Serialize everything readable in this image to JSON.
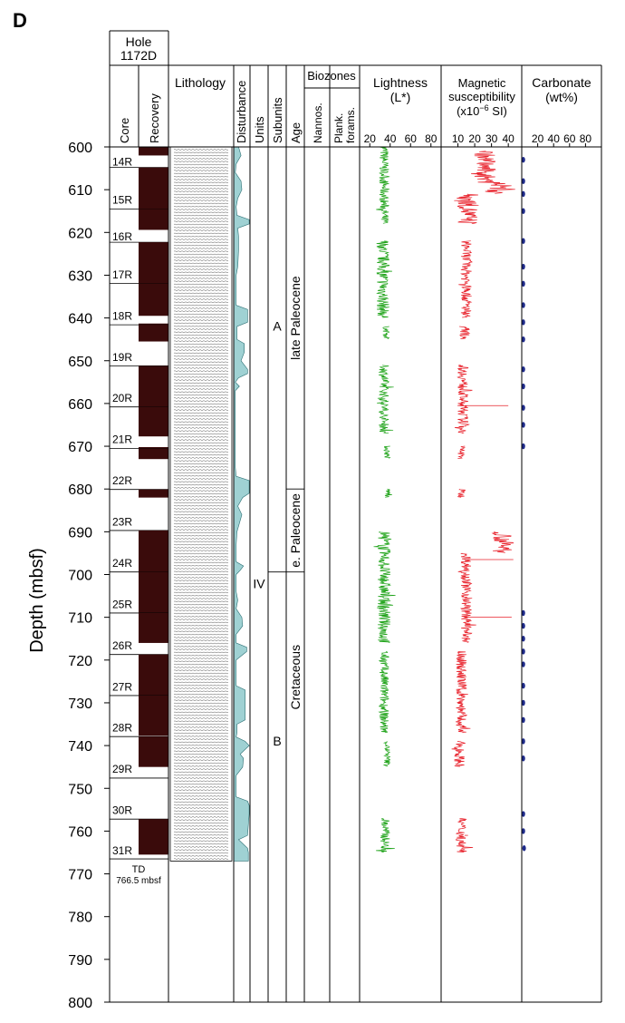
{
  "chart_data": {
    "type": "line",
    "panel_letter": "D",
    "hole_title": [
      "Hole",
      "1172D"
    ],
    "y_axis": {
      "label": "Depth (mbsf)",
      "range": [
        600,
        800
      ],
      "ticks": [
        600,
        610,
        620,
        630,
        640,
        650,
        660,
        670,
        680,
        690,
        700,
        710,
        720,
        730,
        740,
        750,
        760,
        770,
        780,
        790,
        800
      ],
      "reversed": true
    },
    "column_headers": {
      "core": "Core",
      "recovery": "Recovery",
      "lithology": "Lithology",
      "disturbance": "Disturbance",
      "units": "Units",
      "subunits": "Subunits",
      "age": "Age",
      "biozones": "Biozones",
      "nannos": "Nannos.",
      "plank": [
        "Plank.",
        "forams."
      ]
    },
    "cores": [
      {
        "label": "14R",
        "top": 600.0,
        "bottom": 604.8,
        "recovered": [
          [
            600.0,
            602.0
          ]
        ]
      },
      {
        "label": "15R",
        "top": 604.8,
        "bottom": 614.5,
        "recovered": [
          [
            604.8,
            614.5
          ]
        ]
      },
      {
        "label": "16R",
        "top": 614.5,
        "bottom": 622.3,
        "recovered": [
          [
            614.5,
            619.4
          ]
        ]
      },
      {
        "label": "17R",
        "top": 622.3,
        "bottom": 631.9,
        "recovered": [
          [
            622.3,
            631.9
          ]
        ]
      },
      {
        "label": "18R",
        "top": 631.9,
        "bottom": 641.6,
        "recovered": [
          [
            631.9,
            639.5
          ],
          [
            641.3,
            641.6
          ]
        ]
      },
      {
        "label": "19R",
        "top": 641.6,
        "bottom": 651.2,
        "recovered": [
          [
            641.6,
            645.5
          ]
        ]
      },
      {
        "label": "20R",
        "top": 651.2,
        "bottom": 660.8,
        "recovered": [
          [
            651.2,
            660.8
          ]
        ]
      },
      {
        "label": "21R",
        "top": 660.8,
        "bottom": 670.5,
        "recovered": [
          [
            660.8,
            667.7
          ],
          [
            670.2,
            670.5
          ]
        ]
      },
      {
        "label": "22R",
        "top": 670.5,
        "bottom": 680.1,
        "recovered": [
          [
            670.5,
            673.0
          ]
        ]
      },
      {
        "label": "23R",
        "top": 680.1,
        "bottom": 689.7,
        "recovered": [
          [
            680.1,
            682.0
          ]
        ]
      },
      {
        "label": "24R",
        "top": 689.7,
        "bottom": 699.4,
        "recovered": [
          [
            689.7,
            699.4
          ]
        ]
      },
      {
        "label": "25R",
        "top": 699.4,
        "bottom": 709.0,
        "recovered": [
          [
            699.4,
            709.0
          ]
        ]
      },
      {
        "label": "26R",
        "top": 709.0,
        "bottom": 718.7,
        "recovered": [
          [
            709.0,
            716.0
          ]
        ]
      },
      {
        "label": "27R",
        "top": 718.7,
        "bottom": 728.3,
        "recovered": [
          [
            718.7,
            728.3
          ]
        ]
      },
      {
        "label": "28R",
        "top": 728.3,
        "bottom": 737.9,
        "recovered": [
          [
            728.3,
            737.7
          ],
          [
            737.9,
            737.9
          ]
        ]
      },
      {
        "label": "29R",
        "top": 737.9,
        "bottom": 747.6,
        "recovered": [
          [
            737.9,
            745.0
          ]
        ]
      },
      {
        "label": "30R",
        "top": 747.6,
        "bottom": 757.2,
        "recovered": []
      },
      {
        "label": "31R",
        "top": 757.2,
        "bottom": 766.5,
        "recovered": [
          [
            757.2,
            765.5
          ]
        ]
      }
    ],
    "td_label": [
      "TD",
      "766.5 mbsf"
    ],
    "lithology_range": [
      600,
      767
    ],
    "disturbance_profile": [
      [
        600,
        0.3
      ],
      [
        602,
        0.45
      ],
      [
        604,
        0.15
      ],
      [
        606,
        0.1
      ],
      [
        608,
        0.45
      ],
      [
        610,
        0.5
      ],
      [
        612,
        0.25
      ],
      [
        614,
        0.15
      ],
      [
        616,
        0.2
      ],
      [
        617,
        0.95
      ],
      [
        618,
        0.95
      ],
      [
        619,
        0.25
      ],
      [
        621,
        0.3
      ],
      [
        624,
        0.3
      ],
      [
        628,
        0.25
      ],
      [
        630,
        0.15
      ],
      [
        634,
        0.15
      ],
      [
        637,
        0.15
      ],
      [
        638,
        0.85
      ],
      [
        640,
        0.85
      ],
      [
        641,
        0.85
      ],
      [
        642,
        0.2
      ],
      [
        645,
        0.2
      ],
      [
        646,
        0.65
      ],
      [
        648,
        0.65
      ],
      [
        650,
        0.45
      ],
      [
        652,
        0.85
      ],
      [
        653,
        0.85
      ],
      [
        654,
        0.3
      ],
      [
        655,
        0.1
      ],
      [
        656,
        0.35
      ],
      [
        657,
        0.1
      ],
      [
        660,
        0.1
      ],
      [
        665,
        0.1
      ],
      [
        670,
        0.1
      ],
      [
        675,
        0.1
      ],
      [
        677,
        0.15
      ],
      [
        678,
        0.95
      ],
      [
        681,
        0.95
      ],
      [
        682,
        0.55
      ],
      [
        684,
        0.25
      ],
      [
        686,
        0.5
      ],
      [
        690,
        0.2
      ],
      [
        693,
        0.15
      ],
      [
        697,
        0.15
      ],
      [
        698,
        0.6
      ],
      [
        699,
        0.4
      ],
      [
        700,
        0.15
      ],
      [
        704,
        0.15
      ],
      [
        706,
        0.25
      ],
      [
        708,
        0.15
      ],
      [
        710,
        0.5
      ],
      [
        712,
        0.55
      ],
      [
        714,
        0.15
      ],
      [
        716,
        0.15
      ],
      [
        717,
        0.8
      ],
      [
        718,
        0.8
      ],
      [
        720,
        0.15
      ],
      [
        726,
        0.15
      ],
      [
        727,
        0.7
      ],
      [
        734,
        0.7
      ],
      [
        735,
        0.2
      ],
      [
        737,
        0.2
      ],
      [
        738,
        0.15
      ],
      [
        739,
        0.7
      ],
      [
        740,
        0.95
      ],
      [
        742,
        0.4
      ],
      [
        743,
        0.6
      ],
      [
        745,
        0.55
      ],
      [
        747,
        0.15
      ],
      [
        752,
        0.15
      ],
      [
        753,
        0.85
      ],
      [
        754,
        0.95
      ],
      [
        756,
        0.95
      ],
      [
        761,
        0.85
      ],
      [
        762,
        0.3
      ],
      [
        764,
        0.85
      ],
      [
        765,
        0.9
      ],
      [
        767,
        0.9
      ]
    ],
    "units": [
      {
        "label": "IV",
        "top": 600,
        "bottom": 800
      }
    ],
    "subunits": [
      {
        "label": "A",
        "top": 600,
        "bottom": 699.4
      },
      {
        "label": "B",
        "top": 699.4,
        "bottom": 800
      }
    ],
    "ages": [
      {
        "label": "late Paleocene",
        "top": 600,
        "bottom": 680
      },
      {
        "label": "e. Paleocene",
        "top": 680,
        "bottom": 699.4
      },
      {
        "label": "Cretaceous",
        "top": 699.4,
        "bottom": 800
      }
    ],
    "tracks": {
      "lightness": {
        "title": [
          "Lightness",
          "(L*)"
        ],
        "ticks": [
          20,
          40,
          60,
          80
        ],
        "xlim": [
          10,
          90
        ],
        "color": "#1fa319"
      },
      "magsus": {
        "title": [
          "Magnetic",
          "susceptibility",
          "(x10",
          "−6",
          " SI)"
        ],
        "ticks": [
          10,
          20,
          30,
          40
        ],
        "xlim": [
          0,
          48
        ],
        "color": "#e8202a"
      },
      "carbonate": {
        "title": [
          "Carbonate",
          "(wt%)"
        ],
        "ticks": [
          20,
          40,
          60,
          80
        ],
        "xlim": [
          0,
          100
        ],
        "color": "#1e2a8a"
      }
    },
    "series": [
      {
        "name": "Lightness",
        "track": "lightness",
        "segments": [
          {
            "from": 600,
            "to": 618,
            "mean": 34,
            "amp": 3
          },
          {
            "from": 622,
            "to": 640,
            "mean": 33,
            "amp": 4
          },
          {
            "from": 642,
            "to": 645,
            "mean": 36,
            "amp": 2
          },
          {
            "from": 651,
            "to": 667,
            "mean": 34,
            "amp": 3
          },
          {
            "from": 670,
            "to": 673,
            "mean": 37,
            "amp": 2
          },
          {
            "from": 680,
            "to": 682,
            "mean": 38,
            "amp": 2
          },
          {
            "from": 690,
            "to": 716,
            "mean": 34,
            "amp": 4
          },
          {
            "from": 718,
            "to": 737,
            "mean": 34,
            "amp": 3
          },
          {
            "from": 739,
            "to": 745,
            "mean": 37,
            "amp": 2
          },
          {
            "from": 757,
            "to": 765,
            "mean": 35,
            "amp": 3
          }
        ]
      },
      {
        "name": "Magnetic susceptibility",
        "track": "magsus",
        "segments": [
          {
            "from": 601,
            "to": 608,
            "mean": 26,
            "amp": 4
          },
          {
            "from": 608,
            "to": 611,
            "mean": 35,
            "amp": 6
          },
          {
            "from": 611,
            "to": 618,
            "mean": 16,
            "amp": 4
          },
          {
            "from": 622,
            "to": 640,
            "mean": 15,
            "amp": 2
          },
          {
            "from": 642,
            "to": 645,
            "mean": 14,
            "amp": 2
          },
          {
            "from": 651,
            "to": 667,
            "mean": 13,
            "amp": 2
          },
          {
            "from": 670,
            "to": 673,
            "mean": 12,
            "amp": 1.5
          },
          {
            "from": 680,
            "to": 682,
            "mean": 12,
            "amp": 1.5
          },
          {
            "from": 690,
            "to": 695,
            "mean": 37,
            "amp": 4
          },
          {
            "from": 695,
            "to": 716,
            "mean": 15,
            "amp": 2
          },
          {
            "from": 718,
            "to": 737,
            "mean": 12,
            "amp": 2
          },
          {
            "from": 739,
            "to": 745,
            "mean": 11,
            "amp": 2
          },
          {
            "from": 757,
            "to": 765,
            "mean": 12,
            "amp": 2
          }
        ],
        "spikes": [
          {
            "depth": 660.5,
            "value": 40
          },
          {
            "depth": 696.5,
            "value": 43
          },
          {
            "depth": 710,
            "value": 42
          },
          {
            "depth": 728,
            "value": 16
          },
          {
            "depth": 761,
            "value": 16
          }
        ]
      },
      {
        "name": "Carbonate",
        "track": "carbonate",
        "points": [
          [
            603,
            2
          ],
          [
            608,
            2
          ],
          [
            611,
            2
          ],
          [
            615,
            2
          ],
          [
            622,
            2
          ],
          [
            628,
            2
          ],
          [
            632,
            2
          ],
          [
            637,
            2
          ],
          [
            641,
            2
          ],
          [
            645,
            2
          ],
          [
            652,
            2
          ],
          [
            656,
            2
          ],
          [
            661,
            2
          ],
          [
            665,
            2
          ],
          [
            670,
            2
          ],
          [
            709,
            2
          ],
          [
            712,
            2
          ],
          [
            715,
            2
          ],
          [
            718,
            2
          ],
          [
            721,
            2
          ],
          [
            726,
            2
          ],
          [
            730,
            2
          ],
          [
            734,
            2
          ],
          [
            739,
            2
          ],
          [
            743,
            2
          ],
          [
            756,
            2
          ],
          [
            760,
            2
          ],
          [
            764,
            3
          ]
        ]
      }
    ]
  }
}
